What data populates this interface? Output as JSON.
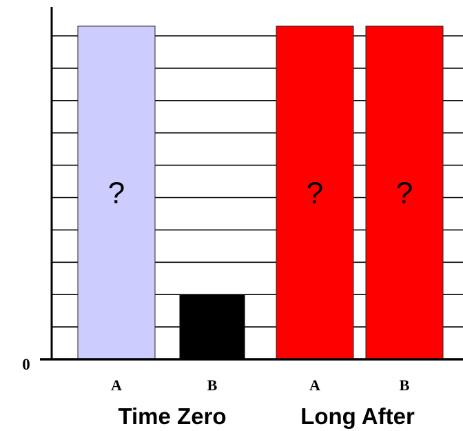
{
  "chart_data": {
    "type": "bar",
    "title": "",
    "xlabel": "",
    "ylabel": "",
    "ylim": [
      0,
      10.4
    ],
    "yticks": [
      0,
      1,
      2,
      3,
      4,
      5,
      6,
      7,
      8,
      9,
      10
    ],
    "ytick_labels_shown": [
      "0"
    ],
    "grid": true,
    "categories": [
      "A",
      "B",
      "A",
      "B"
    ],
    "groups": [
      "Time Zero",
      "Long After"
    ],
    "values": [
      10.3,
      2.0,
      10.3,
      10.3
    ],
    "bar_labels": [
      "?",
      "",
      "?",
      "?"
    ],
    "colors": [
      "#ccccff",
      "#000000",
      "#ff0000",
      "#ff0000"
    ]
  }
}
